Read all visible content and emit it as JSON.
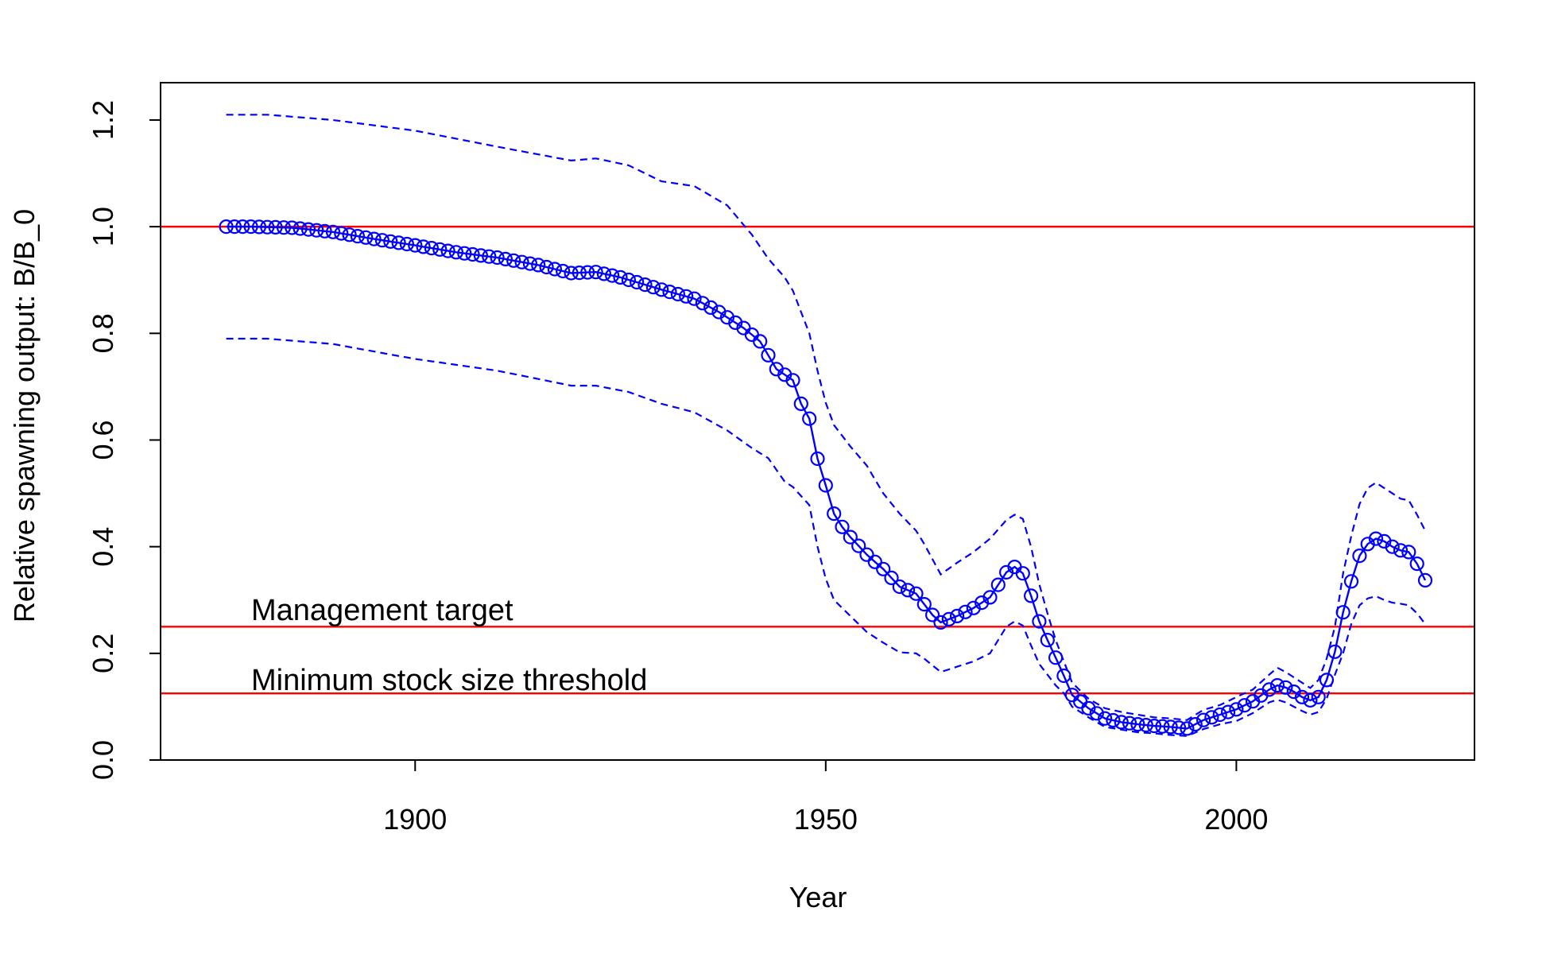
{
  "chart_data": {
    "type": "line",
    "title": "",
    "xlabel": "Year",
    "ylabel": "Relative spawning output: B/B_0",
    "xlim": [
      1869,
      2029
    ],
    "ylim": [
      0,
      1.27
    ],
    "x_ticks": [
      1900,
      1950,
      2000
    ],
    "y_ticks": [
      "0.0",
      "0.2",
      "0.4",
      "0.6",
      "0.8",
      "1.0",
      "1.2"
    ],
    "grid": false,
    "legend": "none",
    "colors": {
      "series": "#0000ff",
      "reference": "#ff0000",
      "axis": "#000000"
    },
    "reference_lines": [
      {
        "y": 1.0,
        "label": ""
      },
      {
        "y": 0.25,
        "label": "Management target"
      },
      {
        "y": 0.125,
        "label": "Minimum stock size threshold"
      }
    ],
    "series": [
      {
        "style": "solid line with open circles",
        "anchors": [
          [
            1877,
            1.0
          ],
          [
            1880,
            1.0
          ],
          [
            1885,
            0.998
          ],
          [
            1890,
            0.99
          ],
          [
            1895,
            0.977
          ],
          [
            1900,
            0.965
          ],
          [
            1905,
            0.952
          ],
          [
            1910,
            0.942
          ],
          [
            1915,
            0.928
          ],
          [
            1919,
            0.913
          ],
          [
            1922,
            0.915
          ],
          [
            1925,
            0.905
          ],
          [
            1930,
            0.882
          ],
          [
            1934,
            0.865
          ],
          [
            1937,
            0.84
          ],
          [
            1940,
            0.81
          ],
          [
            1942,
            0.785
          ],
          [
            1944,
            0.733
          ],
          [
            1946,
            0.712
          ],
          [
            1947,
            0.668
          ],
          [
            1948,
            0.64
          ],
          [
            1949,
            0.565
          ],
          [
            1950,
            0.515
          ],
          [
            1951,
            0.462
          ],
          [
            1952,
            0.437
          ],
          [
            1953,
            0.418
          ],
          [
            1955,
            0.385
          ],
          [
            1957,
            0.358
          ],
          [
            1959,
            0.325
          ],
          [
            1961,
            0.312
          ],
          [
            1962,
            0.292
          ],
          [
            1963,
            0.272
          ],
          [
            1964,
            0.258
          ],
          [
            1966,
            0.27
          ],
          [
            1968,
            0.285
          ],
          [
            1970,
            0.305
          ],
          [
            1972,
            0.352
          ],
          [
            1973,
            0.362
          ],
          [
            1974,
            0.35
          ],
          [
            1975,
            0.308
          ],
          [
            1976,
            0.26
          ],
          [
            1977,
            0.225
          ],
          [
            1978,
            0.192
          ],
          [
            1979,
            0.158
          ],
          [
            1980,
            0.122
          ],
          [
            1982,
            0.097
          ],
          [
            1984,
            0.078
          ],
          [
            1986,
            0.071
          ],
          [
            1988,
            0.067
          ],
          [
            1990,
            0.064
          ],
          [
            1992,
            0.062
          ],
          [
            1994,
            0.059
          ],
          [
            1996,
            0.075
          ],
          [
            1998,
            0.085
          ],
          [
            2000,
            0.095
          ],
          [
            2002,
            0.11
          ],
          [
            2004,
            0.132
          ],
          [
            2005,
            0.14
          ],
          [
            2006,
            0.136
          ],
          [
            2007,
            0.128
          ],
          [
            2008,
            0.118
          ],
          [
            2009,
            0.112
          ],
          [
            2010,
            0.118
          ],
          [
            2011,
            0.15
          ],
          [
            2012,
            0.203
          ],
          [
            2013,
            0.277
          ],
          [
            2014,
            0.335
          ],
          [
            2015,
            0.383
          ],
          [
            2016,
            0.405
          ],
          [
            2017,
            0.415
          ],
          [
            2018,
            0.41
          ],
          [
            2019,
            0.4
          ],
          [
            2020,
            0.393
          ],
          [
            2021,
            0.39
          ],
          [
            2022,
            0.368
          ],
          [
            2023,
            0.337
          ]
        ]
      },
      {
        "style": "dashed",
        "anchors": [
          [
            1877,
            1.21
          ],
          [
            1882,
            1.21
          ],
          [
            1890,
            1.2
          ],
          [
            1900,
            1.18
          ],
          [
            1910,
            1.15
          ],
          [
            1919,
            1.124
          ],
          [
            1922,
            1.128
          ],
          [
            1926,
            1.115
          ],
          [
            1930,
            1.085
          ],
          [
            1934,
            1.076
          ],
          [
            1938,
            1.04
          ],
          [
            1941,
            0.985
          ],
          [
            1943,
            0.94
          ],
          [
            1945,
            0.905
          ],
          [
            1946,
            0.88
          ],
          [
            1948,
            0.8
          ],
          [
            1949,
            0.73
          ],
          [
            1950,
            0.67
          ],
          [
            1951,
            0.628
          ],
          [
            1953,
            0.588
          ],
          [
            1955,
            0.552
          ],
          [
            1957,
            0.5
          ],
          [
            1959,
            0.462
          ],
          [
            1961,
            0.43
          ],
          [
            1962,
            0.405
          ],
          [
            1964,
            0.348
          ],
          [
            1966,
            0.37
          ],
          [
            1968,
            0.39
          ],
          [
            1970,
            0.415
          ],
          [
            1972,
            0.45
          ],
          [
            1973,
            0.46
          ],
          [
            1974,
            0.452
          ],
          [
            1975,
            0.4
          ],
          [
            1976,
            0.33
          ],
          [
            1977,
            0.275
          ],
          [
            1978,
            0.225
          ],
          [
            1979,
            0.185
          ],
          [
            1980,
            0.145
          ],
          [
            1982,
            0.115
          ],
          [
            1984,
            0.097
          ],
          [
            1986,
            0.09
          ],
          [
            1988,
            0.085
          ],
          [
            1990,
            0.08
          ],
          [
            1992,
            0.078
          ],
          [
            1994,
            0.075
          ],
          [
            1996,
            0.094
          ],
          [
            1998,
            0.103
          ],
          [
            2000,
            0.118
          ],
          [
            2002,
            0.132
          ],
          [
            2004,
            0.16
          ],
          [
            2005,
            0.173
          ],
          [
            2006,
            0.165
          ],
          [
            2008,
            0.145
          ],
          [
            2009,
            0.135
          ],
          [
            2010,
            0.15
          ],
          [
            2011,
            0.19
          ],
          [
            2012,
            0.25
          ],
          [
            2013,
            0.35
          ],
          [
            2014,
            0.42
          ],
          [
            2015,
            0.48
          ],
          [
            2016,
            0.51
          ],
          [
            2017,
            0.52
          ],
          [
            2018,
            0.51
          ],
          [
            2019,
            0.5
          ],
          [
            2020,
            0.49
          ],
          [
            2021,
            0.487
          ],
          [
            2022,
            0.46
          ],
          [
            2023,
            0.43
          ]
        ]
      },
      {
        "style": "dashed",
        "anchors": [
          [
            1877,
            0.79
          ],
          [
            1882,
            0.79
          ],
          [
            1890,
            0.78
          ],
          [
            1900,
            0.752
          ],
          [
            1910,
            0.73
          ],
          [
            1919,
            0.702
          ],
          [
            1922,
            0.702
          ],
          [
            1926,
            0.69
          ],
          [
            1930,
            0.668
          ],
          [
            1934,
            0.652
          ],
          [
            1938,
            0.618
          ],
          [
            1941,
            0.585
          ],
          [
            1943,
            0.566
          ],
          [
            1945,
            0.522
          ],
          [
            1946,
            0.512
          ],
          [
            1948,
            0.478
          ],
          [
            1949,
            0.4
          ],
          [
            1950,
            0.34
          ],
          [
            1951,
            0.3
          ],
          [
            1953,
            0.27
          ],
          [
            1955,
            0.24
          ],
          [
            1957,
            0.22
          ],
          [
            1959,
            0.202
          ],
          [
            1961,
            0.2
          ],
          [
            1962,
            0.19
          ],
          [
            1964,
            0.165
          ],
          [
            1966,
            0.175
          ],
          [
            1968,
            0.185
          ],
          [
            1970,
            0.2
          ],
          [
            1972,
            0.25
          ],
          [
            1973,
            0.26
          ],
          [
            1974,
            0.252
          ],
          [
            1975,
            0.215
          ],
          [
            1976,
            0.18
          ],
          [
            1977,
            0.16
          ],
          [
            1978,
            0.14
          ],
          [
            1979,
            0.125
          ],
          [
            1980,
            0.1
          ],
          [
            1982,
            0.08
          ],
          [
            1984,
            0.062
          ],
          [
            1986,
            0.057
          ],
          [
            1988,
            0.052
          ],
          [
            1990,
            0.05
          ],
          [
            1992,
            0.047
          ],
          [
            1994,
            0.045
          ],
          [
            1996,
            0.058
          ],
          [
            1998,
            0.067
          ],
          [
            2000,
            0.073
          ],
          [
            2002,
            0.088
          ],
          [
            2004,
            0.108
          ],
          [
            2005,
            0.113
          ],
          [
            2006,
            0.108
          ],
          [
            2008,
            0.092
          ],
          [
            2009,
            0.085
          ],
          [
            2010,
            0.09
          ],
          [
            2011,
            0.115
          ],
          [
            2012,
            0.16
          ],
          [
            2013,
            0.2
          ],
          [
            2014,
            0.255
          ],
          [
            2015,
            0.29
          ],
          [
            2016,
            0.303
          ],
          [
            2017,
            0.307
          ],
          [
            2018,
            0.3
          ],
          [
            2019,
            0.295
          ],
          [
            2020,
            0.293
          ],
          [
            2021,
            0.29
          ],
          [
            2022,
            0.275
          ],
          [
            2023,
            0.255
          ]
        ]
      }
    ]
  }
}
